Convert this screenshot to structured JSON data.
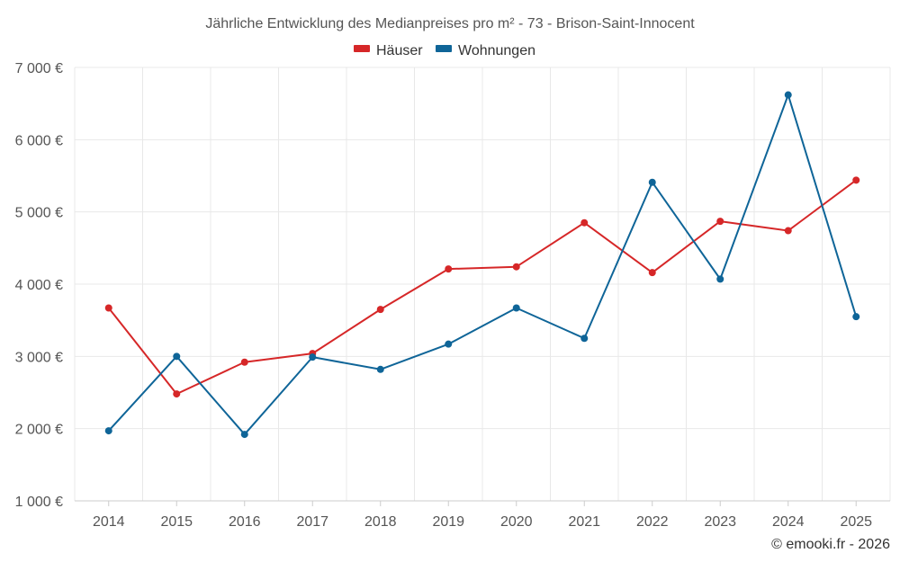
{
  "chart_data": {
    "type": "line",
    "title": "Jährliche Entwicklung des Medianpreises pro m² - 73 - Brison-Saint-Innocent",
    "categories": [
      "2014",
      "2015",
      "2016",
      "2017",
      "2018",
      "2019",
      "2020",
      "2021",
      "2022",
      "2023",
      "2024",
      "2025"
    ],
    "series": [
      {
        "name": "Häuser",
        "color": "#d62728",
        "values": [
          3670,
          2480,
          2920,
          3040,
          3650,
          4210,
          4240,
          4850,
          4160,
          4870,
          4740,
          5440
        ]
      },
      {
        "name": "Wohnungen",
        "color": "#0f6598",
        "values": [
          1970,
          3000,
          1920,
          2990,
          2820,
          3170,
          3670,
          3250,
          5410,
          4070,
          6620,
          3550
        ]
      }
    ],
    "ylim": [
      1000,
      7000
    ],
    "yticks": [
      1000,
      2000,
      3000,
      4000,
      5000,
      6000,
      7000
    ],
    "ytick_labels": [
      "1 000 €",
      "2 000 €",
      "3 000 €",
      "4 000 €",
      "5 000 €",
      "6 000 €",
      "7 000 €"
    ],
    "xlabel": "",
    "ylabel": "",
    "grid": true,
    "legend_position": "top-center"
  },
  "credit": "© emooki.fr - 2026"
}
